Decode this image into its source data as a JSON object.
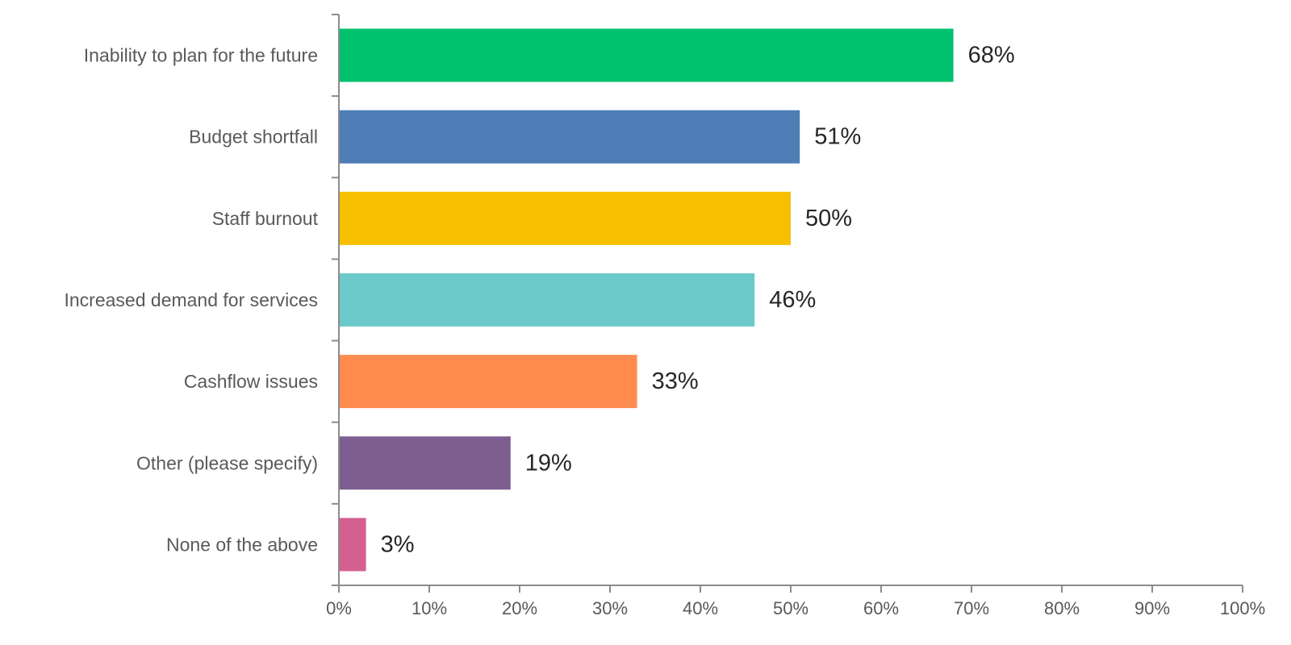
{
  "chart_data": {
    "type": "bar",
    "orientation": "horizontal",
    "categories": [
      "Inability to plan for the future",
      "Budget shortfall",
      "Staff burnout",
      "Increased demand for services",
      "Cashflow issues",
      "Other (please specify)",
      "None of the above"
    ],
    "values": [
      68,
      51,
      50,
      46,
      33,
      19,
      3
    ],
    "value_labels": [
      "68%",
      "51%",
      "50%",
      "46%",
      "33%",
      "19%",
      "3%"
    ],
    "colors": [
      "#00c16e",
      "#4f7db5",
      "#f6bf00",
      "#6cc9ca",
      "#ff8b4e",
      "#7e5e91",
      "#d4608f"
    ],
    "x_ticks": [
      0,
      10,
      20,
      30,
      40,
      50,
      60,
      70,
      80,
      90,
      100
    ],
    "x_tick_labels": [
      "0%",
      "10%",
      "20%",
      "30%",
      "40%",
      "50%",
      "60%",
      "70%",
      "80%",
      "90%",
      "100%"
    ],
    "xlim": [
      0,
      100
    ],
    "title": "",
    "xlabel": "",
    "ylabel": "",
    "grid": false,
    "legend": "none"
  }
}
